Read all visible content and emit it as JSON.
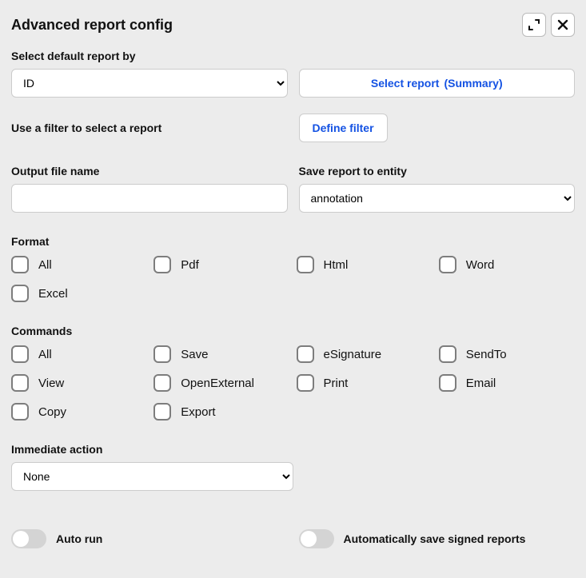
{
  "header": {
    "title": "Advanced report config"
  },
  "select_by": {
    "label": "Select default report by",
    "value": "ID",
    "options": [
      "ID"
    ]
  },
  "select_report": {
    "prefix": "Select report",
    "summary": "(Summary)"
  },
  "filter": {
    "label": "Use a filter to select a report",
    "button": "Define filter"
  },
  "output": {
    "label": "Output file name",
    "value": ""
  },
  "save_to": {
    "label": "Save report to entity",
    "value": "annotation",
    "options": [
      "annotation"
    ]
  },
  "format": {
    "label": "Format",
    "items": [
      {
        "key": "all",
        "label": "All",
        "checked": false
      },
      {
        "key": "pdf",
        "label": "Pdf",
        "checked": false
      },
      {
        "key": "html",
        "label": "Html",
        "checked": false
      },
      {
        "key": "word",
        "label": "Word",
        "checked": false
      },
      {
        "key": "excel",
        "label": "Excel",
        "checked": false
      }
    ]
  },
  "commands": {
    "label": "Commands",
    "items": [
      {
        "key": "all",
        "label": "All",
        "checked": false
      },
      {
        "key": "save",
        "label": "Save",
        "checked": false
      },
      {
        "key": "esignature",
        "label": "eSignature",
        "checked": false
      },
      {
        "key": "sendto",
        "label": "SendTo",
        "checked": false
      },
      {
        "key": "view",
        "label": "View",
        "checked": false
      },
      {
        "key": "openexternal",
        "label": "OpenExternal",
        "checked": false
      },
      {
        "key": "print",
        "label": "Print",
        "checked": false
      },
      {
        "key": "email",
        "label": "Email",
        "checked": false
      },
      {
        "key": "copy",
        "label": "Copy",
        "checked": false
      },
      {
        "key": "export",
        "label": "Export",
        "checked": false
      }
    ]
  },
  "immediate": {
    "label": "Immediate action",
    "value": "None",
    "options": [
      "None"
    ]
  },
  "toggles": {
    "auto_run": {
      "label": "Auto run",
      "value": false
    },
    "auto_save_signed": {
      "label": "Automatically save signed reports",
      "value": false
    }
  },
  "colors": {
    "background": "#ececec",
    "accent": "#1452e3",
    "border": "#cccccc",
    "checkbox_border": "#7d7d7d",
    "toggle_bg": "#d4d4d4",
    "text": "#111111"
  }
}
